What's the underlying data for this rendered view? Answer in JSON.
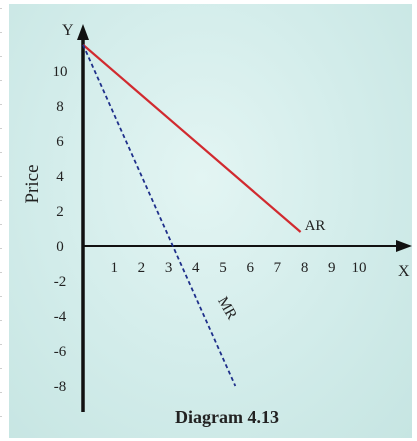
{
  "chart_data": {
    "type": "line",
    "ylabel": "Price",
    "y_axis_name": "Y",
    "x_axis_name": "X",
    "caption": "Diagram 4.13",
    "xlim": [
      0,
      11
    ],
    "ylim": [
      -8,
      11.5
    ],
    "x_ticks": [
      1,
      2,
      3,
      4,
      5,
      6,
      7,
      8,
      9,
      10
    ],
    "y_ticks": [
      10,
      8,
      6,
      4,
      2,
      0,
      -2,
      -4,
      -6,
      -8
    ],
    "grid": false,
    "series": [
      {
        "name": "AR",
        "x": [
          0,
          8
        ],
        "y": [
          11.5,
          0.8
        ],
        "color": "#d12a2f",
        "style": "solid"
      },
      {
        "name": "MR",
        "x": [
          0,
          5.6
        ],
        "y": [
          11.5,
          -8
        ],
        "color": "#1e2f8a",
        "style": "dashed"
      }
    ]
  }
}
